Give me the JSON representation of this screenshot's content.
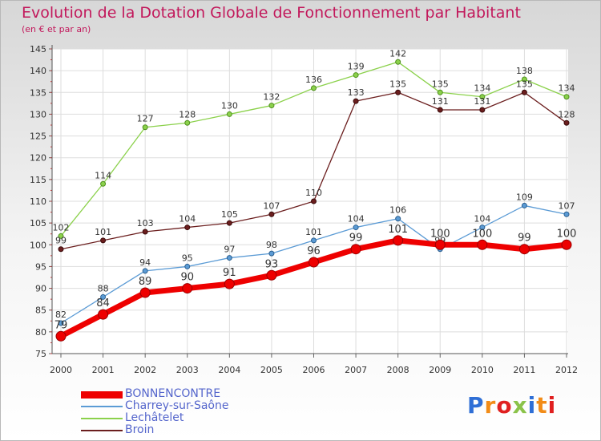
{
  "chart_data": {
    "type": "line",
    "title": "Evolution de la Dotation Globale de Fonctionnement par Habitant",
    "subtitle": "(en € et par an)",
    "xlabel": "",
    "ylabel": "",
    "x": [
      "2000",
      "2001",
      "2002",
      "2003",
      "2004",
      "2005",
      "2006",
      "2007",
      "2008",
      "2009",
      "2010",
      "2011",
      "2012"
    ],
    "ylim": [
      75,
      145
    ],
    "yticks": [
      75,
      80,
      85,
      90,
      95,
      100,
      105,
      110,
      115,
      120,
      125,
      130,
      135,
      140,
      145
    ],
    "grid": true,
    "legend": "bottom-left",
    "series": [
      {
        "name": "BONNENCONTRE",
        "color": "#ee0000",
        "values": [
          79,
          84,
          89,
          90,
          91,
          93,
          96,
          99,
          101,
          100,
          100,
          99,
          100
        ]
      },
      {
        "name": "Charrey-sur-Saône",
        "color": "#5b9bd5",
        "values": [
          82,
          88,
          94,
          95,
          97,
          98,
          101,
          104,
          106,
          99,
          104,
          109,
          107
        ]
      },
      {
        "name": "Lechâtelet",
        "color": "#8bd14b",
        "values": [
          102,
          114,
          127,
          128,
          130,
          132,
          136,
          139,
          142,
          135,
          134,
          138,
          134
        ]
      },
      {
        "name": "Broin",
        "color": "#6b1e1e",
        "values": [
          99,
          101,
          103,
          104,
          105,
          107,
          110,
          133,
          135,
          131,
          131,
          135,
          128
        ]
      }
    ]
  },
  "logo": {
    "text": "Proxiti",
    "colors": [
      "#2f6fd6",
      "#f28c18",
      "#e02020",
      "#8bc34a",
      "#2f6fd6",
      "#f28c18",
      "#e02020"
    ]
  }
}
